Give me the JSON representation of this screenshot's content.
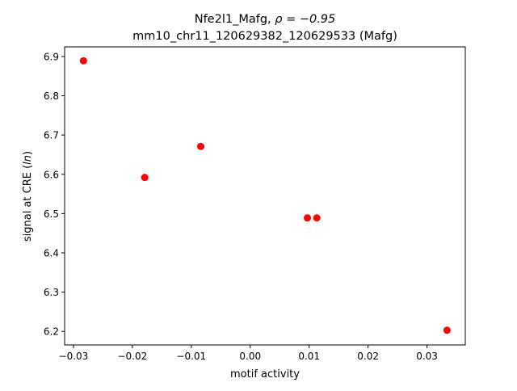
{
  "chart_data": {
    "type": "scatter",
    "title_line1_prefix": "Nfe2l1_Mafg, ",
    "title_line1_rho": "ρ = −0.95",
    "title_line2": "mm10_chr11_120629382_120629533 (Mafg)",
    "xlabel": "motif activity",
    "ylabel_prefix": "signal at CRE (",
    "ylabel_italic": "ln",
    "ylabel_suffix": ")",
    "xlim": [
      -0.0315,
      0.0365
    ],
    "ylim": [
      6.1655,
      6.9245
    ],
    "xticks": [
      -0.03,
      -0.02,
      -0.01,
      0.0,
      0.01,
      0.02,
      0.03
    ],
    "xtick_labels": [
      "−0.03",
      "−0.02",
      "−0.01",
      "0.00",
      "0.01",
      "0.02",
      "0.03"
    ],
    "yticks": [
      6.2,
      6.3,
      6.4,
      6.5,
      6.6,
      6.7,
      6.8,
      6.9
    ],
    "ytick_labels": [
      "6.2",
      "6.3",
      "6.4",
      "6.5",
      "6.6",
      "6.7",
      "6.8",
      "6.9"
    ],
    "grid": false,
    "point_color": "#ff0000",
    "points": [
      {
        "x": -0.0283,
        "y": 6.889
      },
      {
        "x": -0.0179,
        "y": 6.592
      },
      {
        "x": -0.0084,
        "y": 6.671
      },
      {
        "x": 0.0097,
        "y": 6.489
      },
      {
        "x": 0.0113,
        "y": 6.489
      },
      {
        "x": 0.0334,
        "y": 6.203
      }
    ]
  }
}
